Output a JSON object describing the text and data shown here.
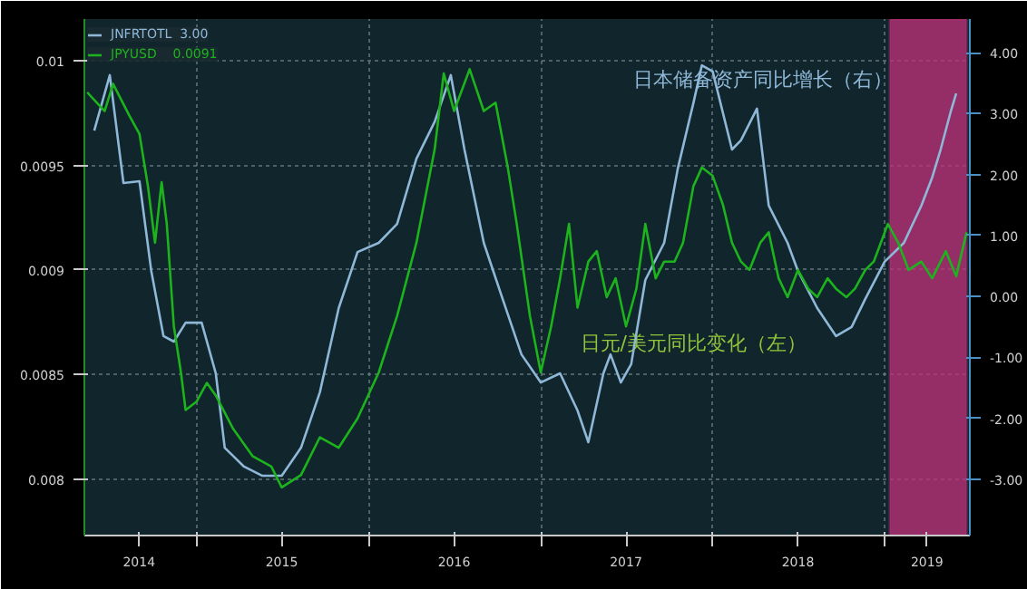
{
  "chart_data": {
    "type": "line",
    "series": [
      {
        "name": "JNFRTOTL  3.00",
        "color": "#8fb8d8",
        "axis": "y2",
        "x": [
          "2014-05-29",
          "2014-07-01",
          "2014-07-30",
          "2014-09-02",
          "2014-09-27",
          "2014-10-23",
          "2014-11-14",
          "2014-12-09",
          "2015-01-12",
          "2015-02-11",
          "2015-03-02",
          "2015-04-12",
          "2015-05-21",
          "2015-07-01",
          "2015-08-11",
          "2015-09-20",
          "2015-10-30",
          "2015-12-09",
          "2016-01-23",
          "2016-03-02",
          "2016-04-12",
          "2016-05-21",
          "2016-06-24",
          "2016-07-23",
          "2016-09-02",
          "2016-10-12",
          "2016-11-21",
          "2017-01-01",
          "2017-02-11",
          "2017-03-20",
          "2017-04-12",
          "2017-05-14",
          "2017-05-29",
          "2017-06-20",
          "2017-07-12",
          "2017-08-11",
          "2017-09-20",
          "2017-10-19",
          "2017-11-21",
          "2017-12-09",
          "2018-01-01",
          "2018-02-11",
          "2018-03-02",
          "2018-04-05",
          "2018-04-30",
          "2018-06-09",
          "2018-07-01",
          "2018-08-11",
          "2018-09-20",
          "2018-10-23",
          "2018-11-21",
          "2019-01-01",
          "2019-02-11",
          "2019-03-20",
          "2019-04-12",
          "2019-04-30",
          "2019-05-21",
          "2019-06-02"
        ],
        "values": [
          2.72,
          3.63,
          1.86,
          1.89,
          0.42,
          -0.65,
          -0.74,
          -0.43,
          -0.43,
          -1.26,
          -2.48,
          -2.79,
          -2.94,
          -2.94,
          -2.48,
          -1.57,
          -0.19,
          0.73,
          0.88,
          1.19,
          2.26,
          2.87,
          3.63,
          2.41,
          0.88,
          -0.04,
          -0.95,
          -1.41,
          -1.26,
          -1.87,
          -2.39,
          -1.26,
          -0.95,
          -1.41,
          -1.11,
          0.27,
          0.88,
          2.1,
          3.17,
          3.79,
          3.69,
          2.41,
          2.56,
          3.08,
          1.49,
          0.88,
          0.42,
          -0.19,
          -0.65,
          -0.5,
          -0.04,
          0.57,
          0.88,
          1.49,
          1.95,
          2.41,
          3.02,
          3.33
        ]
      },
      {
        "name": "JPYUSD    0.0091",
        "color": "#1db31d",
        "x": [
          "2014-05-14",
          "2014-06-20",
          "2014-07-08",
          "2014-08-11",
          "2014-09-02",
          "2014-09-20",
          "2014-10-05",
          "2014-10-19",
          "2014-10-30",
          "2014-11-14",
          "2014-11-29",
          "2014-12-09",
          "2015-01-01",
          "2015-01-23",
          "2015-02-11",
          "2015-03-20",
          "2015-04-30",
          "2015-06-09",
          "2015-07-01",
          "2015-08-11",
          "2015-09-20",
          "2015-10-30",
          "2015-12-09",
          "2016-01-23",
          "2016-03-02",
          "2016-04-12",
          "2016-05-21",
          "2016-06-09",
          "2016-07-01",
          "2016-08-03",
          "2016-09-02",
          "2016-09-27",
          "2016-10-23",
          "2016-11-11",
          "2016-12-09",
          "2017-01-01",
          "2017-01-23",
          "2017-02-11",
          "2017-03-02",
          "2017-03-20",
          "2017-04-12",
          "2017-04-30",
          "2017-05-21",
          "2017-06-09",
          "2017-07-01",
          "2017-07-23",
          "2017-08-11",
          "2017-09-02",
          "2017-09-20",
          "2017-10-12",
          "2017-10-30",
          "2017-11-21",
          "2017-12-09",
          "2018-01-01",
          "2018-01-23",
          "2018-02-11",
          "2018-03-02",
          "2018-03-20",
          "2018-04-12",
          "2018-04-30",
          "2018-05-21",
          "2018-06-09",
          "2018-07-01",
          "2018-07-23",
          "2018-08-11",
          "2018-09-02",
          "2018-09-20",
          "2018-10-12",
          "2018-10-30",
          "2018-11-21",
          "2018-12-09",
          "2019-01-08",
          "2019-01-30",
          "2019-02-21",
          "2019-03-20",
          "2019-04-12",
          "2019-05-11",
          "2019-06-02",
          "2019-06-24"
        ],
        "values": [
          0.00985,
          0.00976,
          0.00989,
          0.00974,
          0.00965,
          0.0094,
          0.00913,
          0.00942,
          0.00922,
          0.00873,
          0.00851,
          0.00833,
          0.00837,
          0.00846,
          0.0084,
          0.00824,
          0.00811,
          0.00806,
          0.00796,
          0.00802,
          0.0082,
          0.00815,
          0.00829,
          0.00851,
          0.00878,
          0.00913,
          0.00958,
          0.00994,
          0.00976,
          0.00996,
          0.00976,
          0.0098,
          0.00949,
          0.00922,
          0.00878,
          0.00851,
          0.00873,
          0.00896,
          0.00922,
          0.00882,
          0.00904,
          0.00909,
          0.00887,
          0.00896,
          0.00873,
          0.00891,
          0.00922,
          0.00896,
          0.00904,
          0.00904,
          0.00913,
          0.0094,
          0.00949,
          0.00945,
          0.00931,
          0.00913,
          0.00904,
          0.009,
          0.00913,
          0.00918,
          0.00896,
          0.00887,
          0.009,
          0.00891,
          0.00887,
          0.00896,
          0.00891,
          0.00887,
          0.00891,
          0.009,
          0.00904,
          0.00922,
          0.00913,
          0.009,
          0.00904,
          0.00896,
          0.00909,
          0.00897,
          0.00918
        ]
      }
    ],
    "annotations": [
      "日本储备资产同比增长（右）",
      "日元/美元同比变化（左）"
    ],
    "xlim": [
      "2014-05-08",
      "2019-07-01"
    ],
    "xticks": [
      {
        "value": "2014-09-01",
        "label": "2014"
      },
      {
        "value": "2015-01-01",
        "label": null
      },
      {
        "value": "2015-07-01",
        "label": "2015"
      },
      {
        "value": "2016-01-01",
        "label": null
      },
      {
        "value": "2016-07-01",
        "label": "2016"
      },
      {
        "value": "2017-01-01",
        "label": null
      },
      {
        "value": "2017-07-01",
        "label": "2017"
      },
      {
        "value": "2018-01-01",
        "label": null
      },
      {
        "value": "2018-07-01",
        "label": "2018"
      },
      {
        "value": "2019-01-01",
        "label": null
      },
      {
        "value": "2019-04-01",
        "label": "2019"
      }
    ],
    "ylim": [
      0.00773,
      0.0102
    ],
    "yticks": [
      0.008,
      0.0085,
      0.009,
      0.0095,
      0.01
    ],
    "y2lim": [
      -3.92,
      4.55
    ],
    "y2ticks": [
      {
        "value": -3,
        "label": "-3.00"
      },
      {
        "value": -2,
        "label": "-2.00"
      },
      {
        "value": -1,
        "label": "-1.00"
      },
      {
        "value": 0,
        "label": "0.00"
      },
      {
        "value": 1,
        "label": "1.00"
      },
      {
        "value": 2,
        "label": "2.00"
      },
      {
        "value": 3,
        "label": "3.00"
      },
      {
        "value": 4,
        "label": "4.00"
      }
    ],
    "bands": [
      {
        "axis": "x",
        "from": "2019-01-12",
        "to": "2019-06-24",
        "color": "#c2307a"
      }
    ],
    "grid": true,
    "legend": "top left",
    "line_style": "solid"
  }
}
